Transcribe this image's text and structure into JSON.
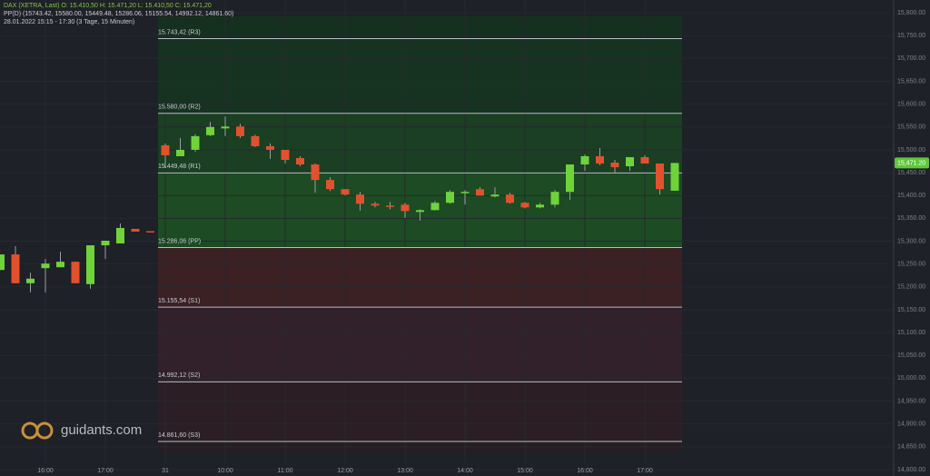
{
  "chart_data": {
    "type": "candlestick",
    "title": "DAX (XETRA, Last)   O: 15.410,50   H: 15.471,20   L: 15.410,50   C: 15.471,20",
    "subtitle": "PP(D)   (15743.42, 15580.00, 15449.48, 15286.06, 15155.54, 14992.12, 14861.60)",
    "info": "28.01.2022 15:15 - 17:30   (3 Tage, 15 Minuten)",
    "logo": "guidants.com",
    "up_color": "#6fd33a",
    "down_color": "#e2512d",
    "categories": [
      null,
      null,
      null,
      "16:00",
      null,
      null,
      null,
      "17:00",
      null,
      null,
      null,
      "31",
      null,
      null,
      null,
      "10:00",
      null,
      null,
      null,
      "11:00",
      null,
      null,
      null,
      "12:00",
      null,
      null,
      null,
      "13:00",
      null,
      null,
      null,
      "14:00",
      null,
      null,
      null,
      "15:00",
      null,
      null,
      null,
      "16:00",
      null,
      null,
      null,
      "17:00",
      null,
      null
    ],
    "open": [
      15237,
      15271,
      15208,
      15241,
      15243,
      15255,
      15206,
      15291,
      15295,
      15327,
      15322,
      15510,
      15486,
      15500,
      15532,
      15547,
      15551,
      15530,
      15508,
      15500,
      15482,
      15468,
      15434,
      15414,
      15402,
      15382,
      15378,
      15380,
      15364,
      15368,
      15384,
      15406,
      15414,
      15398,
      15402,
      15384,
      15374,
      15380,
      15408,
      15468,
      15486,
      15472,
      15464,
      15484,
      15470,
      15410.5
    ],
    "high": [
      15271,
      15289,
      15231,
      15261,
      15277,
      15255,
      15291,
      15301,
      15339,
      15327,
      15322,
      15514,
      15526,
      15534,
      15561,
      15573,
      15557,
      15533,
      15514,
      15500,
      15486,
      15470,
      15440,
      15414,
      15408,
      15386,
      15386,
      15384,
      15370,
      15388,
      15412,
      15412,
      15418,
      15418,
      15406,
      15386,
      15384,
      15412,
      15468,
      15490,
      15504,
      15478,
      15484,
      15488,
      15470,
      15471.2
    ],
    "low": [
      15237,
      15208,
      15188,
      15188,
      15243,
      15208,
      15196,
      15261,
      15295,
      15321,
      15320,
      15460,
      15486,
      15496,
      15530,
      15530,
      15526,
      15506,
      15480,
      15470,
      15464,
      15406,
      15410,
      15400,
      15367,
      15374,
      15370,
      15351,
      15345,
      15368,
      15382,
      15380,
      15400,
      15396,
      15382,
      15372,
      15372,
      15374,
      15390,
      15454,
      15466,
      15450,
      15454,
      15470,
      15402,
      15410.5
    ],
    "close": [
      15271,
      15208,
      15218,
      15251,
      15255,
      15208,
      15291,
      15301,
      15329,
      15321,
      15320,
      15488,
      15500,
      15530,
      15550,
      15551,
      15530,
      15508,
      15500,
      15478,
      15468,
      15434,
      15414,
      15402,
      15382,
      15378,
      15376,
      15366,
      15368,
      15384,
      15408,
      15408,
      15400,
      15402,
      15384,
      15374,
      15380,
      15408,
      15468,
      15486,
      15470,
      15462,
      15484,
      15470,
      15414,
      15471.2
    ],
    "last_price_label": "15,471.20",
    "pivots": [
      {
        "value": 15743.42,
        "label": "15.743,42 (R3)"
      },
      {
        "value": 15580.0,
        "label": "15.580,00 (R2)"
      },
      {
        "value": 15449.48,
        "label": "15.449,48 (R1)"
      },
      {
        "value": 15286.06,
        "label": "15.286,06 (PP)"
      },
      {
        "value": 15155.54,
        "label": "15.155,54 (S1)"
      },
      {
        "value": 14992.12,
        "label": "14.992,12 (S2)"
      },
      {
        "value": 14861.6,
        "label": "14.861,60 (S3)"
      }
    ],
    "ylim": [
      14786,
      15828
    ],
    "yticks": [
      {
        "value": 15800,
        "label": "15,800.00"
      },
      {
        "value": 15750,
        "label": "15,750.00"
      },
      {
        "value": 15700,
        "label": "15,700.00"
      },
      {
        "value": 15650,
        "label": "15,650.00"
      },
      {
        "value": 15600,
        "label": "15,600.00"
      },
      {
        "value": 15550,
        "label": "15,550.00"
      },
      {
        "value": 15500,
        "label": "15,500.00"
      },
      {
        "value": 15450,
        "label": "15,450.00"
      },
      {
        "value": 15400,
        "label": "15,400.00"
      },
      {
        "value": 15350,
        "label": "15,350.00"
      },
      {
        "value": 15300,
        "label": "15,300.00"
      },
      {
        "value": 15250,
        "label": "15,250.00"
      },
      {
        "value": 15200,
        "label": "15,200.00"
      },
      {
        "value": 15150,
        "label": "15,150.00"
      },
      {
        "value": 15100,
        "label": "15,100.00"
      },
      {
        "value": 15050,
        "label": "15,050.00"
      },
      {
        "value": 15000,
        "label": "15,000.00"
      },
      {
        "value": 14950,
        "label": "14,950.00"
      },
      {
        "value": 14900,
        "label": "14,900.00"
      },
      {
        "value": 14850,
        "label": "14,850.00"
      },
      {
        "value": 14800,
        "label": "14,800.00"
      }
    ],
    "grid": true
  }
}
